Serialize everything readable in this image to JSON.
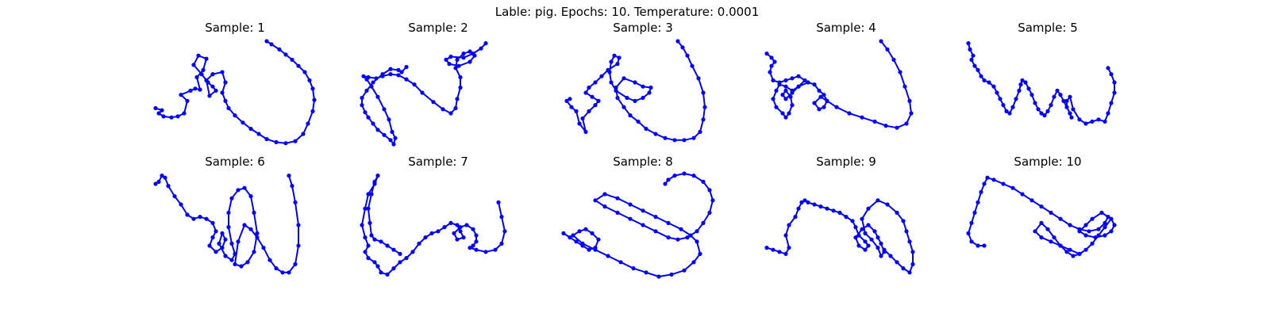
{
  "figure": {
    "title": "Lable: pig. Epochs: 10. Temperature: 0.0001"
  },
  "style": {
    "stroke_color": "#0000ff",
    "marker_color": "#0000ff",
    "background": "#ffffff"
  },
  "chart_data": [
    {
      "type": "line",
      "title": "Sample: 1",
      "axis": "off",
      "grid": false,
      "x": [
        0.0,
        0.04,
        0.02,
        0.05,
        0.1,
        0.14,
        0.18,
        0.2,
        0.16,
        0.22,
        0.25,
        0.28,
        0.26,
        0.3,
        0.32,
        0.27,
        0.24,
        0.29,
        0.33,
        0.36,
        0.38,
        0.34,
        0.32,
        0.36,
        0.42,
        0.44,
        0.42,
        0.44,
        0.46,
        0.5,
        0.55,
        0.6,
        0.65,
        0.7,
        0.76,
        0.82,
        0.88,
        0.93,
        0.96,
        0.99,
        1.0,
        0.99,
        0.97,
        0.94,
        0.9,
        0.86,
        0.82,
        0.78,
        0.73,
        0.7
      ],
      "y": [
        0.35,
        0.33,
        0.3,
        0.27,
        0.26,
        0.27,
        0.3,
        0.42,
        0.48,
        0.52,
        0.54,
        0.53,
        0.65,
        0.72,
        0.83,
        0.86,
        0.77,
        0.68,
        0.6,
        0.56,
        0.52,
        0.47,
        0.62,
        0.68,
        0.7,
        0.6,
        0.5,
        0.42,
        0.35,
        0.28,
        0.21,
        0.15,
        0.1,
        0.05,
        0.02,
        0.01,
        0.03,
        0.1,
        0.2,
        0.32,
        0.43,
        0.54,
        0.62,
        0.7,
        0.76,
        0.82,
        0.87,
        0.92,
        0.97,
        1.0
      ]
    },
    {
      "type": "line",
      "title": "Sample: 2",
      "axis": "off",
      "grid": false,
      "x": [
        0.3,
        0.27,
        0.25,
        0.2,
        0.15,
        0.09,
        0.05,
        0.02,
        0.02,
        0.04,
        0.06,
        0.09,
        0.12,
        0.16,
        0.2,
        0.22,
        0.23,
        0.21,
        0.19,
        0.16,
        0.12,
        0.08,
        0.05,
        0.03,
        0.06,
        0.11,
        0.15,
        0.2,
        0.25,
        0.3,
        0.35,
        0.4,
        0.47,
        0.53,
        0.58,
        0.61,
        0.62,
        0.64,
        0.64,
        0.61,
        0.62,
        0.66,
        0.7,
        0.73,
        0.7,
        0.63,
        0.57,
        0.55,
        0.58,
        0.66,
        0.72,
        0.77,
        0.8
      ],
      "y": [
        0.75,
        0.7,
        0.72,
        0.73,
        0.68,
        0.6,
        0.52,
        0.45,
        0.38,
        0.31,
        0.26,
        0.2,
        0.14,
        0.09,
        0.04,
        0.0,
        0.06,
        0.12,
        0.24,
        0.34,
        0.46,
        0.56,
        0.63,
        0.66,
        0.65,
        0.64,
        0.66,
        0.68,
        0.67,
        0.63,
        0.58,
        0.5,
        0.41,
        0.34,
        0.3,
        0.35,
        0.44,
        0.55,
        0.65,
        0.74,
        0.82,
        0.88,
        0.9,
        0.86,
        0.8,
        0.76,
        0.78,
        0.82,
        0.85,
        0.84,
        0.88,
        0.93,
        0.98
      ]
    },
    {
      "type": "line",
      "title": "Sample: 3",
      "axis": "off",
      "grid": false,
      "x": [
        0.04,
        0.02,
        0.05,
        0.08,
        0.1,
        0.14,
        0.12,
        0.16,
        0.2,
        0.22,
        0.18,
        0.14,
        0.16,
        0.2,
        0.24,
        0.28,
        0.34,
        0.35,
        0.32,
        0.3,
        0.29,
        0.3,
        0.33,
        0.4,
        0.45,
        0.5,
        0.54,
        0.55,
        0.5,
        0.45,
        0.38,
        0.33,
        0.34,
        0.38,
        0.42,
        0.47,
        0.52,
        0.58,
        0.64,
        0.7,
        0.76,
        0.82,
        0.86,
        0.88,
        0.89,
        0.88,
        0.85,
        0.81,
        0.78,
        0.75,
        0.72
      ],
      "y": [
        0.44,
        0.42,
        0.36,
        0.32,
        0.2,
        0.12,
        0.25,
        0.32,
        0.38,
        0.42,
        0.46,
        0.5,
        0.55,
        0.6,
        0.66,
        0.72,
        0.78,
        0.84,
        0.86,
        0.8,
        0.7,
        0.6,
        0.52,
        0.45,
        0.42,
        0.45,
        0.5,
        0.55,
        0.56,
        0.6,
        0.64,
        0.55,
        0.45,
        0.36,
        0.28,
        0.22,
        0.15,
        0.1,
        0.06,
        0.04,
        0.04,
        0.06,
        0.12,
        0.24,
        0.36,
        0.5,
        0.64,
        0.76,
        0.86,
        0.94,
        1.0
      ]
    },
    {
      "type": "line",
      "title": "Sample: 4",
      "axis": "off",
      "grid": false,
      "x": [
        0.0,
        0.03,
        0.05,
        0.03,
        0.02,
        0.04,
        0.08,
        0.12,
        0.16,
        0.2,
        0.24,
        0.2,
        0.16,
        0.12,
        0.08,
        0.06,
        0.04,
        0.06,
        0.1,
        0.12,
        0.14,
        0.16,
        0.15,
        0.12,
        0.1,
        0.12,
        0.16,
        0.2,
        0.26,
        0.3,
        0.33,
        0.36,
        0.38,
        0.36,
        0.33,
        0.3,
        0.34,
        0.38,
        0.44,
        0.52,
        0.6,
        0.68,
        0.75,
        0.82,
        0.88,
        0.91,
        0.9,
        0.87,
        0.84,
        0.8,
        0.76,
        0.72
      ],
      "y": [
        0.88,
        0.84,
        0.8,
        0.76,
        0.7,
        0.62,
        0.6,
        0.62,
        0.64,
        0.66,
        0.62,
        0.56,
        0.52,
        0.56,
        0.58,
        0.52,
        0.44,
        0.36,
        0.3,
        0.26,
        0.3,
        0.38,
        0.46,
        0.52,
        0.48,
        0.44,
        0.5,
        0.56,
        0.6,
        0.58,
        0.52,
        0.48,
        0.42,
        0.36,
        0.34,
        0.4,
        0.46,
        0.42,
        0.36,
        0.3,
        0.26,
        0.22,
        0.18,
        0.16,
        0.2,
        0.3,
        0.42,
        0.56,
        0.7,
        0.82,
        0.92,
        1.0
      ]
    },
    {
      "type": "line",
      "title": "Sample: 5",
      "axis": "off",
      "grid": false,
      "x": [
        0.0,
        0.01,
        0.03,
        0.02,
        0.04,
        0.06,
        0.08,
        0.1,
        0.13,
        0.16,
        0.18,
        0.2,
        0.22,
        0.24,
        0.26,
        0.28,
        0.3,
        0.32,
        0.33,
        0.34,
        0.36,
        0.38,
        0.4,
        0.42,
        0.44,
        0.46,
        0.48,
        0.5,
        0.52,
        0.54,
        0.56,
        0.58,
        0.6,
        0.62,
        0.64,
        0.65,
        0.64,
        0.62,
        0.62,
        0.64,
        0.66,
        0.7,
        0.74,
        0.78,
        0.82,
        0.86,
        0.88,
        0.9,
        0.92,
        0.92,
        0.9,
        0.88
      ],
      "y": [
        0.98,
        0.92,
        0.86,
        0.82,
        0.76,
        0.72,
        0.66,
        0.62,
        0.6,
        0.56,
        0.5,
        0.44,
        0.38,
        0.32,
        0.3,
        0.36,
        0.44,
        0.52,
        0.58,
        0.62,
        0.6,
        0.54,
        0.48,
        0.4,
        0.34,
        0.3,
        0.28,
        0.32,
        0.38,
        0.46,
        0.52,
        0.48,
        0.42,
        0.36,
        0.3,
        0.26,
        0.3,
        0.36,
        0.42,
        0.46,
        0.34,
        0.24,
        0.2,
        0.22,
        0.24,
        0.22,
        0.3,
        0.4,
        0.5,
        0.6,
        0.68,
        0.74
      ]
    },
    {
      "type": "line",
      "title": "Sample: 6",
      "axis": "off",
      "grid": false,
      "x": [
        0.0,
        0.02,
        0.04,
        0.06,
        0.08,
        0.12,
        0.16,
        0.2,
        0.24,
        0.28,
        0.32,
        0.36,
        0.38,
        0.36,
        0.34,
        0.38,
        0.42,
        0.44,
        0.42,
        0.4,
        0.44,
        0.48,
        0.5,
        0.48,
        0.46,
        0.46,
        0.48,
        0.52,
        0.56,
        0.6,
        0.62,
        0.64,
        0.62,
        0.58,
        0.54,
        0.5,
        0.52,
        0.56,
        0.6,
        0.64,
        0.68,
        0.72,
        0.76,
        0.8,
        0.84,
        0.88,
        0.9,
        0.9,
        0.88,
        0.86,
        0.84
      ],
      "y": [
        0.9,
        0.92,
        0.98,
        0.96,
        0.88,
        0.78,
        0.7,
        0.6,
        0.56,
        0.58,
        0.56,
        0.52,
        0.44,
        0.38,
        0.3,
        0.24,
        0.28,
        0.36,
        0.42,
        0.32,
        0.2,
        0.16,
        0.22,
        0.32,
        0.48,
        0.62,
        0.76,
        0.84,
        0.86,
        0.78,
        0.62,
        0.42,
        0.24,
        0.14,
        0.1,
        0.12,
        0.34,
        0.5,
        0.46,
        0.38,
        0.28,
        0.16,
        0.08,
        0.04,
        0.04,
        0.12,
        0.3,
        0.5,
        0.72,
        0.88,
        0.98
      ]
    },
    {
      "type": "line",
      "title": "Sample: 7",
      "axis": "off",
      "grid": false,
      "x": [
        0.26,
        0.22,
        0.18,
        0.14,
        0.1,
        0.08,
        0.07,
        0.06,
        0.08,
        0.1,
        0.12,
        0.1,
        0.06,
        0.04,
        0.02,
        0.04,
        0.06,
        0.04,
        0.06,
        0.1,
        0.12,
        0.14,
        0.18,
        0.22,
        0.26,
        0.3,
        0.34,
        0.38,
        0.42,
        0.46,
        0.5,
        0.54,
        0.58,
        0.62,
        0.64,
        0.66,
        0.62,
        0.6,
        0.64,
        0.68,
        0.72,
        0.74,
        0.74,
        0.72,
        0.7,
        0.74,
        0.8,
        0.86,
        0.9,
        0.92,
        0.9,
        0.88
      ],
      "y": [
        0.22,
        0.26,
        0.3,
        0.34,
        0.36,
        0.4,
        0.52,
        0.66,
        0.8,
        0.92,
        0.98,
        0.9,
        0.8,
        0.66,
        0.5,
        0.38,
        0.3,
        0.24,
        0.18,
        0.14,
        0.1,
        0.04,
        0.02,
        0.08,
        0.14,
        0.18,
        0.24,
        0.32,
        0.38,
        0.42,
        0.44,
        0.48,
        0.52,
        0.5,
        0.44,
        0.38,
        0.36,
        0.42,
        0.48,
        0.5,
        0.46,
        0.4,
        0.34,
        0.3,
        0.28,
        0.26,
        0.24,
        0.26,
        0.32,
        0.44,
        0.58,
        0.72
      ]
    },
    {
      "type": "line",
      "title": "Sample: 8",
      "axis": "off",
      "grid": false,
      "x": [
        0.0,
        0.04,
        0.08,
        0.12,
        0.16,
        0.2,
        0.22,
        0.18,
        0.14,
        0.1,
        0.06,
        0.12,
        0.2,
        0.28,
        0.36,
        0.44,
        0.52,
        0.6,
        0.68,
        0.76,
        0.82,
        0.86,
        0.84,
        0.8,
        0.74,
        0.66,
        0.58,
        0.5,
        0.42,
        0.34,
        0.26,
        0.2,
        0.26,
        0.34,
        0.42,
        0.5,
        0.58,
        0.66,
        0.72,
        0.78,
        0.84,
        0.88,
        0.92,
        0.94,
        0.92,
        0.88,
        0.82,
        0.76,
        0.7,
        0.66,
        0.64
      ],
      "y": [
        0.42,
        0.38,
        0.34,
        0.3,
        0.26,
        0.28,
        0.36,
        0.42,
        0.46,
        0.44,
        0.4,
        0.32,
        0.26,
        0.2,
        0.14,
        0.08,
        0.04,
        0.0,
        0.02,
        0.06,
        0.14,
        0.22,
        0.34,
        0.4,
        0.46,
        0.52,
        0.58,
        0.64,
        0.7,
        0.76,
        0.8,
        0.74,
        0.68,
        0.62,
        0.56,
        0.5,
        0.44,
        0.38,
        0.36,
        0.38,
        0.44,
        0.52,
        0.62,
        0.74,
        0.84,
        0.92,
        0.98,
        1.0,
        0.98,
        0.94,
        0.9
      ]
    },
    {
      "type": "line",
      "title": "Sample: 9",
      "axis": "off",
      "grid": false,
      "x": [
        0.0,
        0.04,
        0.08,
        0.12,
        0.14,
        0.12,
        0.14,
        0.18,
        0.2,
        0.22,
        0.24,
        0.26,
        0.3,
        0.34,
        0.38,
        0.42,
        0.46,
        0.5,
        0.54,
        0.56,
        0.58,
        0.62,
        0.64,
        0.62,
        0.58,
        0.56,
        0.6,
        0.64,
        0.68,
        0.7,
        0.72,
        0.74,
        0.72,
        0.7,
        0.66,
        0.62,
        0.6,
        0.64,
        0.7,
        0.76,
        0.82,
        0.86,
        0.88,
        0.9,
        0.92,
        0.92,
        0.9,
        0.86,
        0.82,
        0.78,
        0.74
      ],
      "y": [
        0.28,
        0.26,
        0.24,
        0.22,
        0.28,
        0.4,
        0.5,
        0.58,
        0.66,
        0.72,
        0.74,
        0.72,
        0.7,
        0.68,
        0.66,
        0.64,
        0.62,
        0.58,
        0.54,
        0.48,
        0.4,
        0.34,
        0.3,
        0.26,
        0.3,
        0.38,
        0.46,
        0.5,
        0.44,
        0.38,
        0.32,
        0.24,
        0.2,
        0.28,
        0.36,
        0.42,
        0.56,
        0.66,
        0.74,
        0.7,
        0.62,
        0.54,
        0.44,
        0.34,
        0.24,
        0.12,
        0.04,
        0.08,
        0.14,
        0.2,
        0.26
      ]
    },
    {
      "type": "line",
      "title": "Sample: 10",
      "axis": "off",
      "grid": false,
      "x": [
        0.1,
        0.06,
        0.02,
        0.0,
        0.02,
        0.04,
        0.06,
        0.08,
        0.1,
        0.12,
        0.16,
        0.22,
        0.28,
        0.34,
        0.4,
        0.46,
        0.52,
        0.58,
        0.64,
        0.7,
        0.76,
        0.82,
        0.86,
        0.88,
        0.84,
        0.78,
        0.74,
        0.7,
        0.74,
        0.8,
        0.86,
        0.9,
        0.92,
        0.9,
        0.86,
        0.82,
        0.78,
        0.74,
        0.7,
        0.66,
        0.62,
        0.58,
        0.54,
        0.5,
        0.46,
        0.42,
        0.46,
        0.52,
        0.58,
        0.64,
        0.7
      ],
      "y": [
        0.3,
        0.3,
        0.34,
        0.42,
        0.52,
        0.62,
        0.72,
        0.82,
        0.9,
        0.96,
        0.94,
        0.9,
        0.86,
        0.8,
        0.74,
        0.68,
        0.62,
        0.56,
        0.5,
        0.46,
        0.44,
        0.46,
        0.52,
        0.58,
        0.62,
        0.56,
        0.5,
        0.44,
        0.4,
        0.38,
        0.4,
        0.44,
        0.5,
        0.56,
        0.48,
        0.4,
        0.32,
        0.26,
        0.22,
        0.2,
        0.24,
        0.3,
        0.38,
        0.46,
        0.52,
        0.44,
        0.38,
        0.34,
        0.3,
        0.26,
        0.22
      ]
    }
  ]
}
